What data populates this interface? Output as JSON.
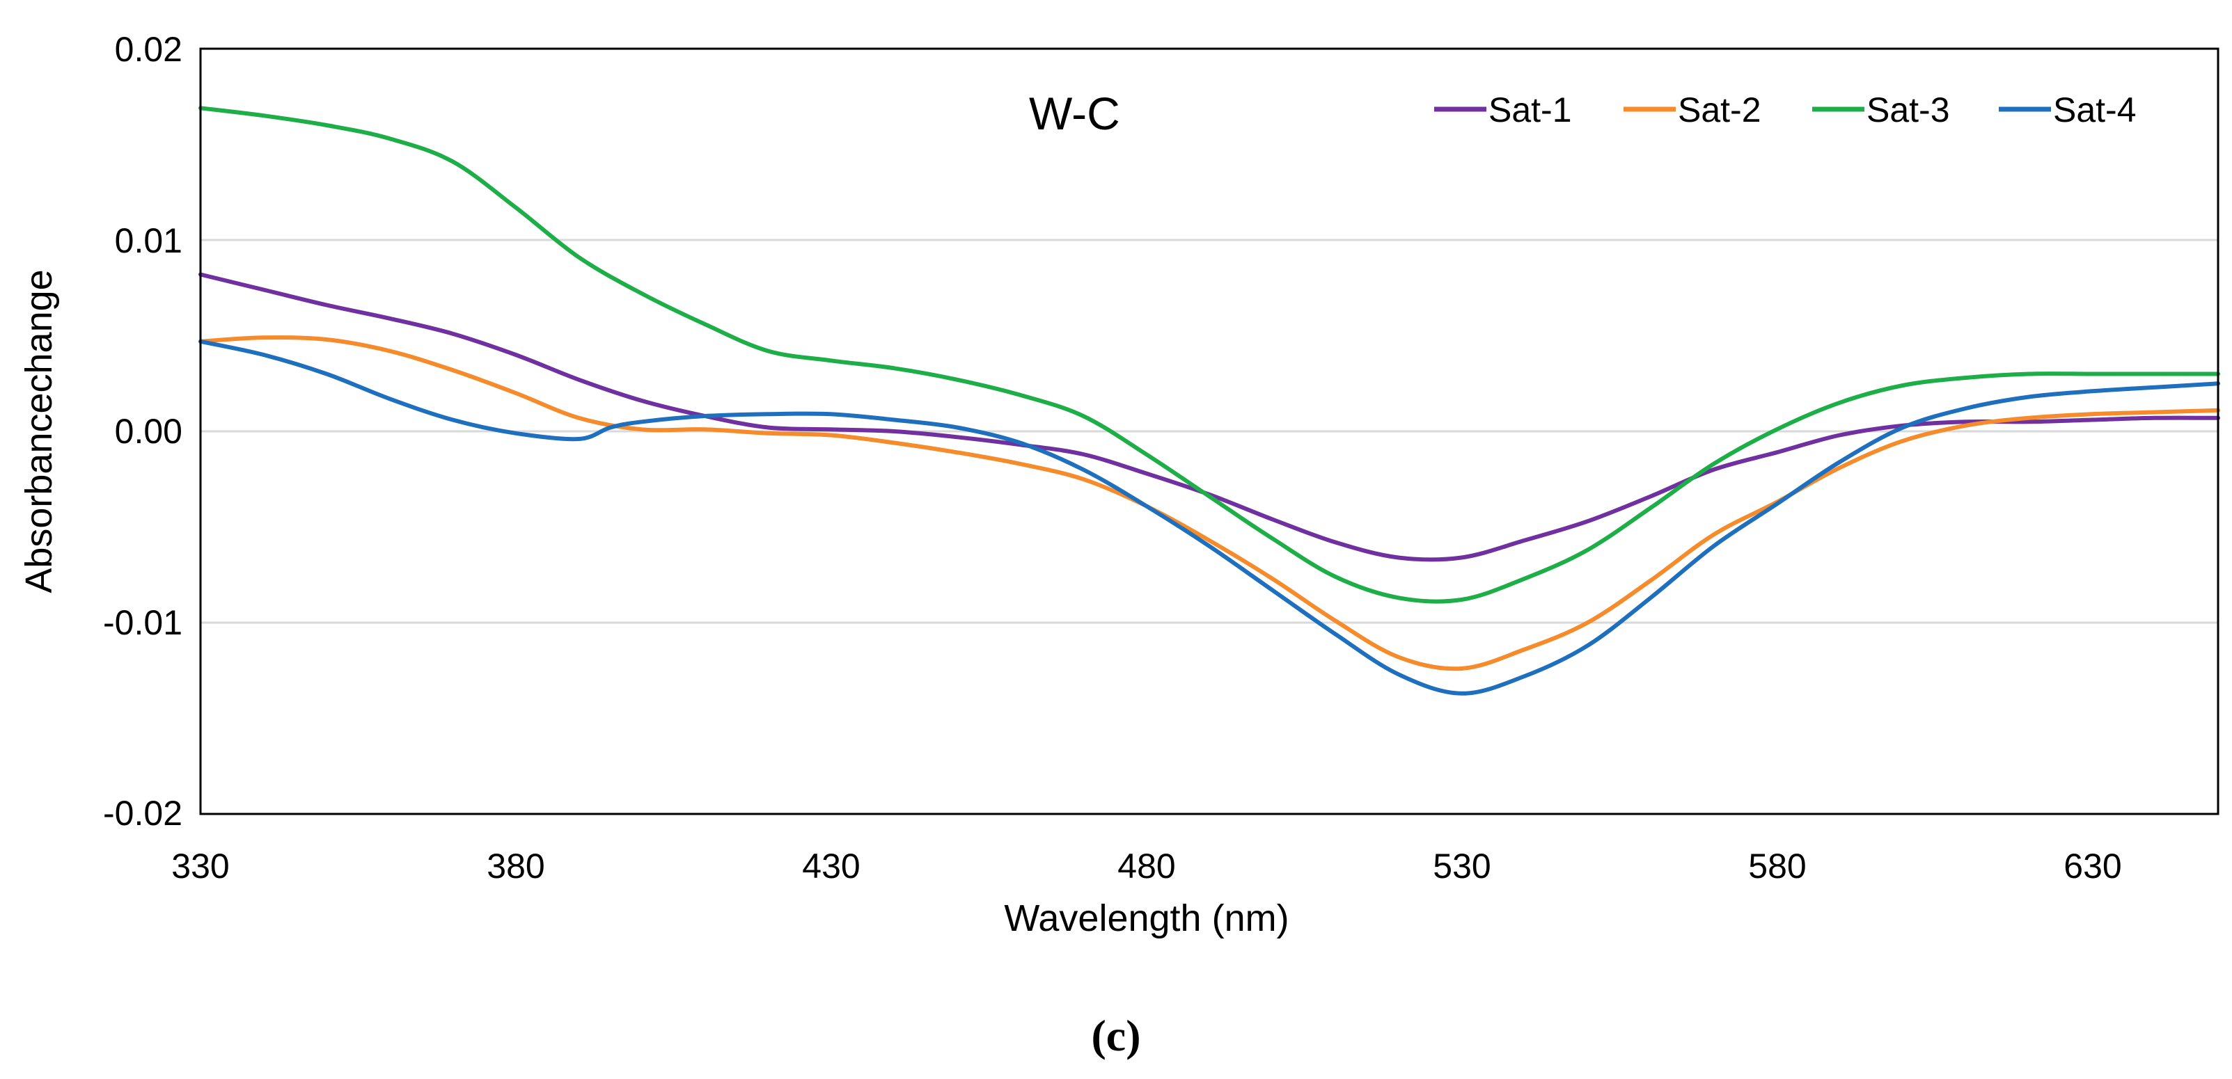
{
  "chart_data": {
    "type": "line",
    "title": "W-C",
    "xlabel": "Wavelength (nm)",
    "ylabel": "Absorbancechange",
    "xlim": [
      330,
      650
    ],
    "ylim": [
      -0.02,
      0.02
    ],
    "x_ticks": [
      "330",
      "380",
      "430",
      "480",
      "530",
      "580",
      "630"
    ],
    "y_ticks": [
      "0.02",
      "0.01",
      "0.00",
      "-0.01",
      "-0.02"
    ],
    "grid": true,
    "legend_position": "top-right",
    "caption": "(c)",
    "series": [
      {
        "name": "Sat-1",
        "color": "#7030A0",
        "points": [
          [
            330,
            0.0082
          ],
          [
            340,
            0.0074
          ],
          [
            350,
            0.0066
          ],
          [
            360,
            0.0059
          ],
          [
            370,
            0.0051
          ],
          [
            380,
            0.004
          ],
          [
            390,
            0.0027
          ],
          [
            400,
            0.0016
          ],
          [
            410,
            0.0008
          ],
          [
            420,
            0.0002
          ],
          [
            430,
            0.0001
          ],
          [
            440,
            0.0
          ],
          [
            450,
            -0.0003
          ],
          [
            460,
            -0.0007
          ],
          [
            470,
            -0.0012
          ],
          [
            480,
            -0.0022
          ],
          [
            490,
            -0.0033
          ],
          [
            500,
            -0.0046
          ],
          [
            510,
            -0.0058
          ],
          [
            520,
            -0.0066
          ],
          [
            530,
            -0.0066
          ],
          [
            540,
            -0.0057
          ],
          [
            550,
            -0.0047
          ],
          [
            560,
            -0.0034
          ],
          [
            570,
            -0.002
          ],
          [
            580,
            -0.0011
          ],
          [
            590,
            -0.0002
          ],
          [
            600,
            0.0003
          ],
          [
            610,
            0.0005
          ],
          [
            620,
            0.0005
          ],
          [
            630,
            0.0006
          ],
          [
            640,
            0.0007
          ],
          [
            650,
            0.0007
          ]
        ]
      },
      {
        "name": "Sat-2",
        "color": "#F58B2B",
        "points": [
          [
            330,
            0.0047
          ],
          [
            340,
            0.0049
          ],
          [
            350,
            0.0048
          ],
          [
            360,
            0.0042
          ],
          [
            370,
            0.0032
          ],
          [
            380,
            0.002
          ],
          [
            390,
            0.0007
          ],
          [
            400,
            0.0001
          ],
          [
            410,
            0.0001
          ],
          [
            420,
            -0.0001
          ],
          [
            430,
            -0.0002
          ],
          [
            440,
            -0.0006
          ],
          [
            450,
            -0.0011
          ],
          [
            460,
            -0.0017
          ],
          [
            470,
            -0.0025
          ],
          [
            480,
            -0.0039
          ],
          [
            490,
            -0.0057
          ],
          [
            500,
            -0.0077
          ],
          [
            510,
            -0.0099
          ],
          [
            520,
            -0.0118
          ],
          [
            530,
            -0.0124
          ],
          [
            540,
            -0.0114
          ],
          [
            550,
            -0.01
          ],
          [
            560,
            -0.0078
          ],
          [
            570,
            -0.0054
          ],
          [
            580,
            -0.0037
          ],
          [
            590,
            -0.0019
          ],
          [
            600,
            -0.0005
          ],
          [
            610,
            0.0003
          ],
          [
            620,
            0.0007
          ],
          [
            630,
            0.0009
          ],
          [
            640,
            0.001
          ],
          [
            650,
            0.0011
          ]
        ]
      },
      {
        "name": "Sat-3",
        "color": "#1DAE48",
        "points": [
          [
            330,
            0.0169
          ],
          [
            340,
            0.0165
          ],
          [
            350,
            0.016
          ],
          [
            360,
            0.0153
          ],
          [
            370,
            0.0141
          ],
          [
            380,
            0.0117
          ],
          [
            390,
            0.0091
          ],
          [
            400,
            0.0072
          ],
          [
            410,
            0.0056
          ],
          [
            420,
            0.0042
          ],
          [
            430,
            0.0037
          ],
          [
            440,
            0.0033
          ],
          [
            450,
            0.0027
          ],
          [
            460,
            0.0019
          ],
          [
            470,
            0.0008
          ],
          [
            480,
            -0.0012
          ],
          [
            490,
            -0.0034
          ],
          [
            500,
            -0.0056
          ],
          [
            510,
            -0.0076
          ],
          [
            520,
            -0.0087
          ],
          [
            530,
            -0.0088
          ],
          [
            540,
            -0.0077
          ],
          [
            550,
            -0.0062
          ],
          [
            560,
            -0.004
          ],
          [
            570,
            -0.0017
          ],
          [
            580,
            0.0001
          ],
          [
            590,
            0.0015
          ],
          [
            600,
            0.0024
          ],
          [
            610,
            0.0028
          ],
          [
            620,
            0.003
          ],
          [
            630,
            0.003
          ],
          [
            640,
            0.003
          ],
          [
            650,
            0.003
          ]
        ]
      },
      {
        "name": "Sat-4",
        "color": "#1F6FBF",
        "points": [
          [
            330,
            0.0047
          ],
          [
            340,
            0.004
          ],
          [
            350,
            0.003
          ],
          [
            360,
            0.0017
          ],
          [
            370,
            0.0006
          ],
          [
            380,
            -0.0001
          ],
          [
            390,
            -0.0004
          ],
          [
            395,
            0.0002
          ],
          [
            400,
            0.0005
          ],
          [
            410,
            0.0008
          ],
          [
            420,
            0.0009
          ],
          [
            430,
            0.0009
          ],
          [
            440,
            0.0006
          ],
          [
            450,
            0.0002
          ],
          [
            460,
            -0.0006
          ],
          [
            470,
            -0.002
          ],
          [
            480,
            -0.0039
          ],
          [
            490,
            -0.006
          ],
          [
            500,
            -0.0083
          ],
          [
            510,
            -0.0106
          ],
          [
            520,
            -0.0127
          ],
          [
            530,
            -0.0137
          ],
          [
            540,
            -0.0128
          ],
          [
            550,
            -0.0112
          ],
          [
            560,
            -0.0087
          ],
          [
            570,
            -0.006
          ],
          [
            580,
            -0.0038
          ],
          [
            590,
            -0.0016
          ],
          [
            600,
            0.0002
          ],
          [
            610,
            0.0012
          ],
          [
            620,
            0.0018
          ],
          [
            630,
            0.0021
          ],
          [
            640,
            0.0023
          ],
          [
            650,
            0.0025
          ]
        ]
      }
    ]
  }
}
